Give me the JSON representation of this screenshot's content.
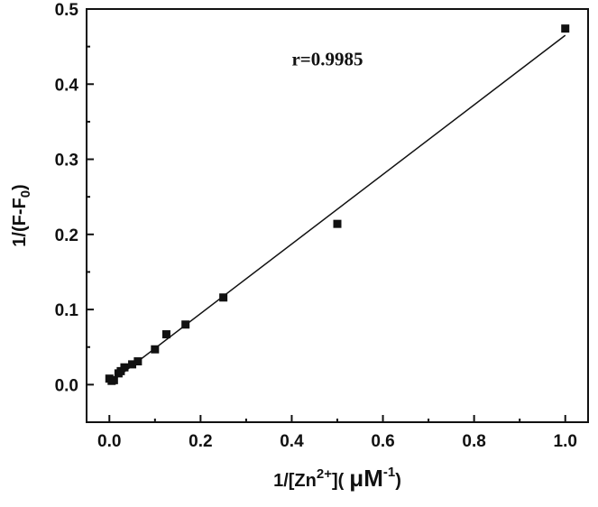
{
  "chart_data": {
    "type": "scatter",
    "title": "",
    "xlabel": {
      "prefix": "1/[Zn",
      "sup": "2+",
      "middle": "](",
      "mu": "μ",
      "unit": "M",
      "unit_sup": "-1",
      "suffix": ")"
    },
    "ylabel": {
      "prefix": "1/(F-F",
      "sub": "0",
      "suffix": ")"
    },
    "xlim": [
      -0.05,
      1.05
    ],
    "ylim": [
      -0.05,
      0.5
    ],
    "xticks": [
      0.0,
      0.2,
      0.4,
      0.6,
      0.8,
      1.0
    ],
    "xtick_labels": [
      "0.0",
      "0.2",
      "0.4",
      "0.6",
      "0.8",
      "1.0"
    ],
    "yticks": [
      0.0,
      0.1,
      0.2,
      0.3,
      0.4,
      0.5
    ],
    "ytick_labels": [
      "0.0",
      "0.1",
      "0.2",
      "0.3",
      "0.4",
      "0.5"
    ],
    "grid": false,
    "legend": "none",
    "series": [
      {
        "marker": "square",
        "color": "#111111",
        "x": [
          0.0,
          0.005,
          0.01,
          0.02,
          0.025,
          0.033,
          0.05,
          0.0625,
          0.1,
          0.125,
          0.167,
          0.25,
          0.5,
          1.0
        ],
        "y": [
          0.008,
          0.005,
          0.006,
          0.015,
          0.018,
          0.023,
          0.027,
          0.031,
          0.047,
          0.067,
          0.08,
          0.116,
          0.214,
          0.474
        ]
      }
    ],
    "fit_line": {
      "x": [
        0.0,
        1.0
      ],
      "y": [
        0.002,
        0.465
      ],
      "color": "#111111"
    },
    "annotations": [
      {
        "text": "r=0.9985",
        "x": 0.4,
        "y": 0.425
      }
    ]
  }
}
